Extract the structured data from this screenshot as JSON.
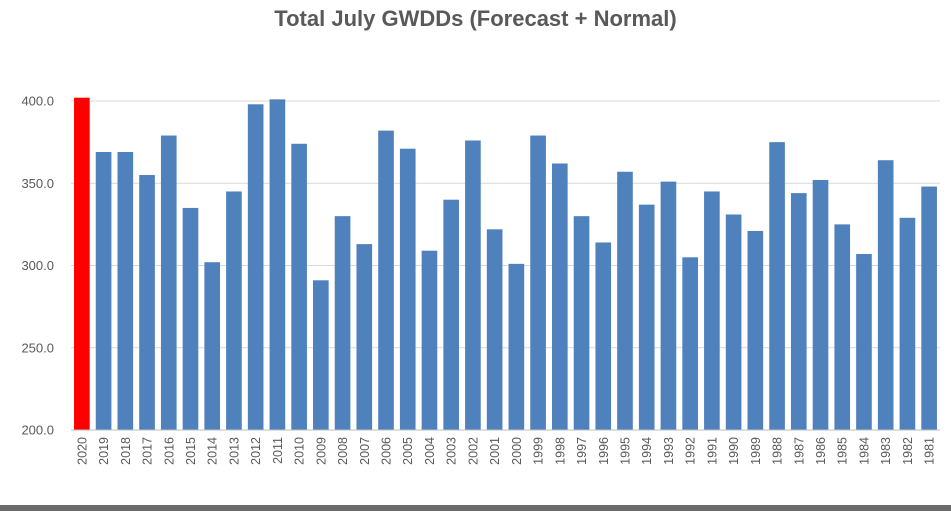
{
  "chart_data": {
    "type": "bar",
    "title": "Total July GWDDs (Forecast + Normal)",
    "xlabel": "",
    "ylabel": "",
    "ylim": [
      200,
      400
    ],
    "yticks": [
      "200.0",
      "250.0",
      "300.0",
      "350.0",
      "400.0"
    ],
    "grid": true,
    "categories": [
      "2020",
      "2019",
      "2018",
      "2017",
      "2016",
      "2015",
      "2014",
      "2013",
      "2012",
      "2011",
      "2010",
      "2009",
      "2008",
      "2007",
      "2006",
      "2005",
      "2004",
      "2003",
      "2002",
      "2001",
      "2000",
      "1999",
      "1998",
      "1997",
      "1996",
      "1995",
      "1994",
      "1993",
      "1992",
      "1991",
      "1990",
      "1989",
      "1988",
      "1987",
      "1986",
      "1985",
      "1984",
      "1983",
      "1982",
      "1981"
    ],
    "values": [
      402,
      369,
      369,
      355,
      379,
      335,
      302,
      345,
      398,
      401,
      374,
      291,
      330,
      313,
      382,
      371,
      309,
      340,
      376,
      322,
      301,
      379,
      362,
      330,
      314,
      357,
      337,
      351,
      305,
      345,
      331,
      321,
      375,
      344,
      352,
      325,
      307,
      364,
      329,
      348
    ],
    "colors": {
      "bar": "#4f81bd",
      "highlight": "#ff0000",
      "grid": "#d9d9d9",
      "axis": "#bfbfbf",
      "text": "#595959"
    },
    "highlight_index": 0
  }
}
